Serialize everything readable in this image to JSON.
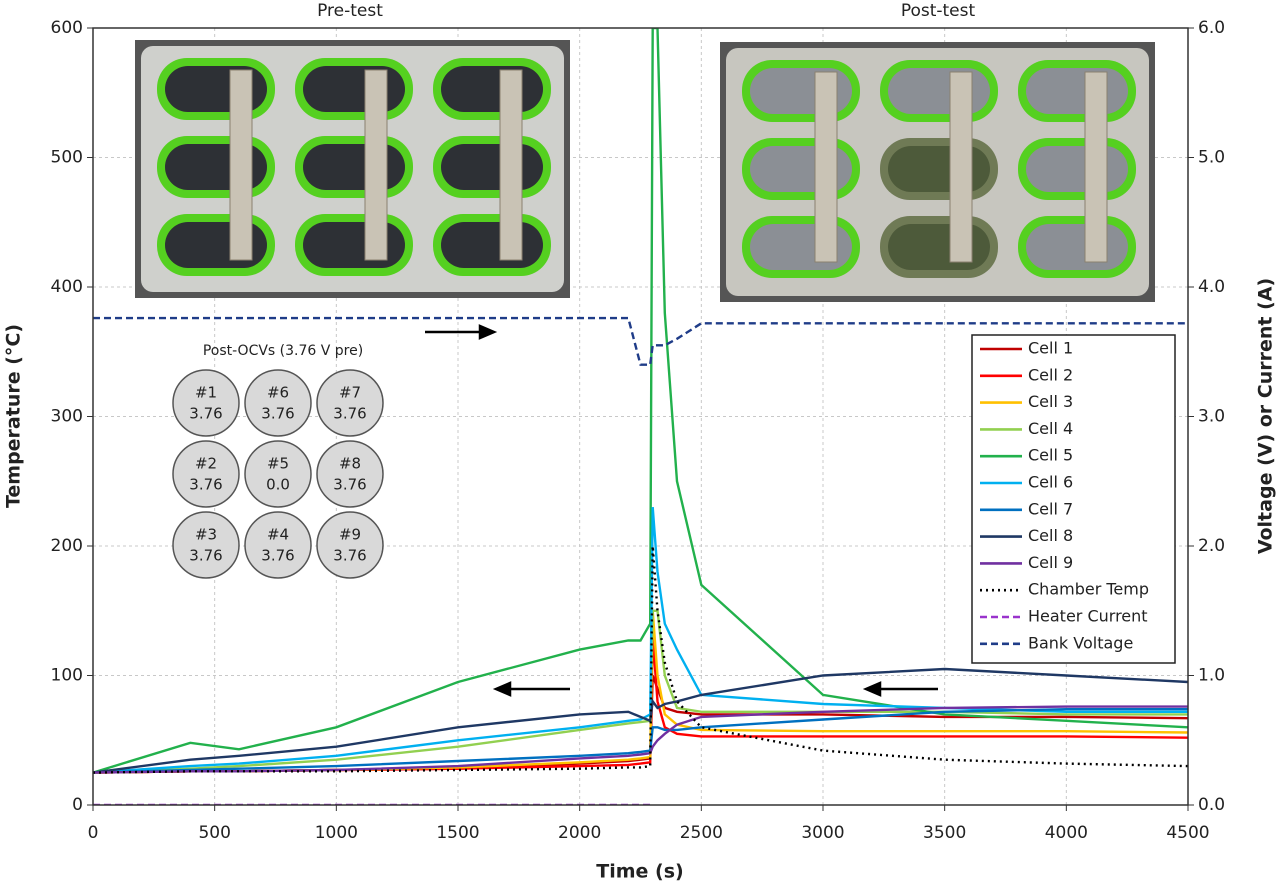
{
  "chart_data": {
    "type": "line",
    "x_label": "Time (s)",
    "y_label": "Temperature (°C)",
    "y2_label": "Voltage (V) or Current (A)",
    "annotations": [
      "Pre-test",
      "Post-test"
    ],
    "ocv_title": "Post-OCVs (3.76 V pre)",
    "ocv_grid": [
      [
        [
          "#1",
          "3.76"
        ],
        [
          "#6",
          "3.76"
        ],
        [
          "#7",
          "3.76"
        ]
      ],
      [
        [
          "#2",
          "3.76"
        ],
        [
          "#5",
          "0.0"
        ],
        [
          "#8",
          "3.76"
        ]
      ],
      [
        [
          "#3",
          "3.76"
        ],
        [
          "#4",
          "3.76"
        ],
        [
          "#9",
          "3.76"
        ]
      ]
    ],
    "ocv_highlight_color": "#e03030",
    "xlim": [
      0,
      4500
    ],
    "xticks": [
      0,
      500,
      1000,
      1500,
      2000,
      2500,
      3000,
      3500,
      4000,
      4500
    ],
    "ylim": [
      0,
      600
    ],
    "yticks": [
      0,
      100,
      200,
      300,
      400,
      500,
      600
    ],
    "y2lim": [
      0,
      6
    ],
    "y2ticks": [
      {
        "value": 0,
        "label": "0.0"
      },
      {
        "value": 1,
        "label": "1.0"
      },
      {
        "value": 2,
        "label": "2.0"
      },
      {
        "value": 3,
        "label": "3.0"
      },
      {
        "value": 4,
        "label": "4.0"
      },
      {
        "value": 5,
        "label": "5.0"
      },
      {
        "value": 6,
        "label": "6.0"
      }
    ],
    "grid": true,
    "legend": "right",
    "x": [
      0,
      400,
      600,
      1000,
      1500,
      2000,
      2200,
      2250,
      2290,
      2300,
      2320,
      2350,
      2400,
      2500,
      3000,
      3500,
      4000,
      4500
    ],
    "series": [
      {
        "name": "Cell 1",
        "color": "#c00000",
        "values": [
          25,
          26,
          26,
          27,
          28,
          32,
          34,
          35,
          36,
          100,
          90,
          75,
          72,
          70,
          70,
          68,
          68,
          67
        ]
      },
      {
        "name": "Cell 2",
        "color": "#ff0000",
        "values": [
          25,
          26,
          26,
          27,
          28,
          30,
          31,
          32,
          33,
          130,
          80,
          60,
          55,
          53,
          53,
          53,
          53,
          52
        ]
      },
      {
        "name": "Cell 3",
        "color": "#ffc000",
        "values": [
          25,
          26,
          26,
          27,
          29,
          33,
          35,
          36,
          37,
          150,
          100,
          70,
          62,
          58,
          57,
          57,
          57,
          56
        ]
      },
      {
        "name": "Cell 4",
        "color": "#92d050",
        "values": [
          25,
          28,
          30,
          35,
          45,
          58,
          63,
          64,
          65,
          150,
          150,
          100,
          75,
          72,
          72,
          72,
          70,
          70
        ]
      },
      {
        "name": "Cell 5",
        "color": "#22b14c",
        "label_color": "#e03030",
        "values": [
          25,
          48,
          43,
          60,
          95,
          120,
          127,
          127,
          140,
          600,
          600,
          380,
          250,
          170,
          85,
          70,
          65,
          60
        ]
      },
      {
        "name": "Cell 6",
        "color": "#00b0f0",
        "values": [
          25,
          30,
          32,
          38,
          50,
          60,
          65,
          66,
          70,
          230,
          180,
          140,
          120,
          85,
          78,
          75,
          72,
          72
        ]
      },
      {
        "name": "Cell 7",
        "color": "#0070c0",
        "values": [
          25,
          27,
          28,
          30,
          34,
          38,
          40,
          41,
          42,
          60,
          60,
          58,
          58,
          60,
          66,
          72,
          74,
          74
        ]
      },
      {
        "name": "Cell 8",
        "color": "#1f3864",
        "values": [
          25,
          35,
          38,
          45,
          60,
          70,
          72,
          68,
          65,
          80,
          75,
          78,
          80,
          85,
          100,
          105,
          100,
          95
        ]
      },
      {
        "name": "Cell 9",
        "color": "#7030a0",
        "values": [
          25,
          26,
          26,
          27,
          30,
          36,
          38,
          39,
          40,
          45,
          50,
          55,
          62,
          68,
          72,
          75,
          76,
          76
        ]
      },
      {
        "name": "Chamber Temp",
        "color": "#000000",
        "dash": "dotted",
        "values": [
          25,
          26,
          26,
          26,
          27,
          28,
          29,
          29,
          30,
          200,
          150,
          110,
          80,
          60,
          42,
          35,
          32,
          30
        ]
      },
      {
        "name": "Heater Current",
        "color": "#9933cc",
        "dash": "dashed",
        "axis": "y2",
        "values": [
          0,
          0,
          0,
          0,
          0,
          0,
          0,
          0,
          0,
          null,
          null,
          null,
          null,
          null,
          null,
          null,
          null,
          null
        ]
      },
      {
        "name": "Bank Voltage",
        "color": "#1f3c88",
        "dash": "dashed",
        "axis": "y2",
        "values": [
          3.76,
          3.76,
          3.76,
          3.76,
          3.76,
          3.76,
          3.76,
          3.4,
          3.4,
          3.55,
          3.55,
          3.55,
          3.6,
          3.72,
          3.72,
          3.72,
          3.72,
          3.72
        ]
      }
    ]
  }
}
